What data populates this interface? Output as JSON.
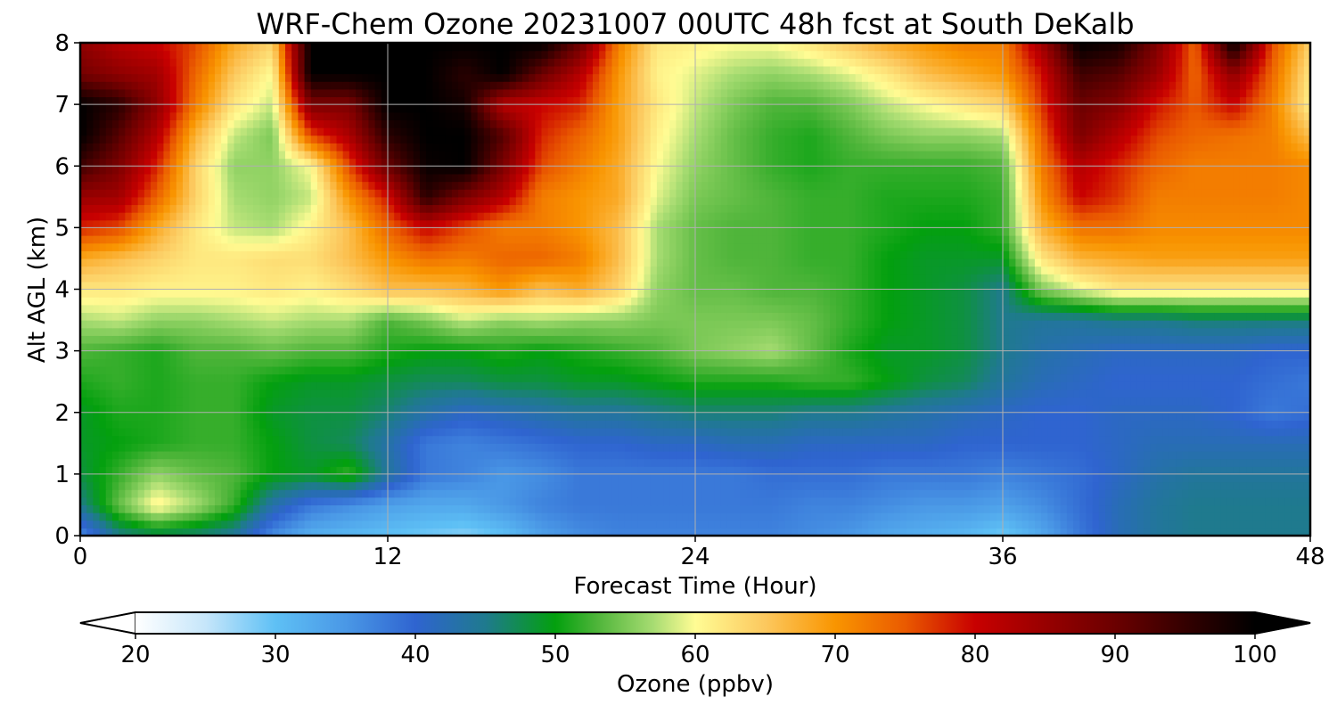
{
  "chart_data": {
    "type": "heatmap",
    "title": "WRF-Chem Ozone  20231007 00UTC 48h fcst at South DeKalb",
    "xlabel": "Forecast Time (Hour)",
    "ylabel": "Alt AGL (km)",
    "xlim": [
      0,
      48
    ],
    "ylim": [
      0,
      8
    ],
    "x_ticks": [
      0,
      12,
      24,
      36,
      48
    ],
    "x_tick_labels": [
      "0",
      "12",
      "24",
      "36",
      "48"
    ],
    "y_ticks": [
      0,
      1,
      2,
      3,
      4,
      5,
      6,
      7,
      8
    ],
    "y_tick_labels": [
      "0",
      "1",
      "2",
      "3",
      "4",
      "5",
      "6",
      "7",
      "8"
    ],
    "grid": true,
    "x": [
      0,
      1.5,
      3,
      4.5,
      6,
      7.5,
      9,
      10.5,
      12,
      13.5,
      15,
      16.5,
      18,
      19.5,
      21,
      22.5,
      24,
      25.5,
      27,
      28.5,
      30,
      31.5,
      33,
      34.5,
      36,
      37.5,
      39,
      40.5,
      42,
      43.5,
      45,
      46.5,
      48
    ],
    "y": [
      0,
      0.5,
      1,
      1.5,
      2,
      2.5,
      3,
      3.5,
      4,
      4.5,
      5,
      5.5,
      6,
      6.5,
      7,
      7.5,
      8
    ],
    "z": [
      [
        36,
        45,
        47,
        46,
        44,
        36,
        32,
        31,
        30,
        29,
        28,
        30,
        34,
        36,
        37,
        37,
        37,
        37,
        37,
        36,
        35,
        33,
        32,
        31,
        29,
        33,
        38,
        42,
        44,
        45,
        45,
        45,
        45
      ],
      [
        45,
        54,
        61,
        57,
        52,
        43,
        38,
        36,
        34,
        33,
        33,
        35,
        37,
        38,
        38,
        38,
        38,
        38,
        38,
        37,
        37,
        36,
        35,
        35,
        34,
        36,
        39,
        42,
        44,
        45,
        45,
        45,
        45
      ],
      [
        48,
        52,
        56,
        54,
        53,
        50,
        49,
        52,
        44,
        38,
        37,
        35,
        36,
        38,
        38,
        38,
        38,
        38,
        39,
        39,
        39,
        38,
        38,
        38,
        37,
        38,
        39,
        41,
        43,
        44,
        44,
        44,
        44
      ],
      [
        49,
        50,
        51,
        52,
        52,
        50,
        48,
        47,
        43,
        38,
        37,
        38,
        39,
        40,
        40,
        41,
        41,
        42,
        42,
        41,
        41,
        41,
        41,
        40,
        40,
        40,
        40,
        41,
        42,
        42,
        42,
        42,
        42
      ],
      [
        49,
        51,
        51,
        52,
        52,
        49,
        48,
        48,
        46,
        43,
        41,
        42,
        43,
        44,
        44,
        45,
        46,
        46,
        46,
        45,
        45,
        44,
        43,
        42,
        41,
        40,
        40,
        41,
        41,
        41,
        40,
        38,
        39
      ],
      [
        51,
        52,
        51,
        52,
        52,
        50,
        49,
        49,
        48,
        47,
        47,
        48,
        48,
        49,
        49,
        50,
        51,
        51,
        51,
        52,
        52,
        50,
        48,
        47,
        44,
        42,
        41,
        40,
        40,
        40,
        40,
        39,
        38
      ],
      [
        53,
        52,
        51,
        53,
        53,
        54,
        53,
        53,
        51,
        50,
        50,
        51,
        50,
        51,
        52,
        53,
        55,
        56,
        57,
        54,
        51,
        49,
        49,
        48,
        45,
        43,
        42,
        41,
        41,
        41,
        41,
        40,
        40
      ],
      [
        57,
        58,
        56,
        56,
        57,
        58,
        57,
        57,
        53,
        55,
        58,
        56,
        57,
        56,
        56,
        55,
        55,
        55,
        55,
        54,
        52,
        50,
        49,
        48,
        45,
        44,
        44,
        45,
        45,
        46,
        46,
        46,
        46
      ],
      [
        62,
        62,
        61,
        61,
        61,
        62,
        61,
        63,
        66,
        66,
        67,
        70,
        66,
        68,
        64,
        56,
        54,
        54,
        53,
        53,
        52,
        50,
        49,
        48,
        45,
        55,
        59,
        62,
        62,
        62,
        62,
        62,
        62
      ],
      [
        68,
        66,
        64,
        62,
        62,
        63,
        63,
        66,
        70,
        73,
        72,
        74,
        74,
        72,
        66,
        57,
        54,
        53,
        53,
        52,
        52,
        50,
        49,
        49,
        49,
        62,
        67,
        68,
        69,
        69,
        69,
        69,
        69
      ],
      [
        78,
        76,
        68,
        62,
        58,
        57,
        61,
        66,
        74,
        80,
        76,
        72,
        72,
        70,
        66,
        57,
        54,
        53,
        53,
        52,
        52,
        51,
        50,
        50,
        52,
        67,
        73,
        73,
        71,
        71,
        71,
        71,
        71
      ],
      [
        85,
        84,
        74,
        64,
        57,
        56,
        58,
        70,
        79,
        96,
        88,
        82,
        72,
        70,
        68,
        59,
        55,
        54,
        53,
        52,
        52,
        51,
        51,
        51,
        52,
        70,
        80,
        77,
        72,
        72,
        72,
        72,
        71
      ],
      [
        94,
        88,
        78,
        64,
        56,
        56,
        60,
        76,
        90,
        99,
        100,
        88,
        76,
        72,
        68,
        60,
        56,
        54,
        52,
        51,
        52,
        52,
        52,
        52,
        53,
        72,
        82,
        78,
        74,
        72,
        72,
        72,
        71
      ],
      [
        100,
        92,
        82,
        67,
        58,
        55,
        76,
        83,
        96,
        100,
        100,
        92,
        78,
        74,
        69,
        61,
        57,
        54,
        52,
        51,
        53,
        55,
        56,
        56,
        57,
        74,
        88,
        82,
        76,
        74,
        73,
        72,
        66
      ],
      [
        100,
        96,
        86,
        72,
        62,
        58,
        88,
        88,
        100,
        100,
        98,
        82,
        80,
        78,
        69,
        62,
        58,
        55,
        53,
        53,
        55,
        58,
        60,
        62,
        64,
        77,
        90,
        87,
        79,
        75,
        80,
        72,
        61
      ],
      [
        89,
        86,
        84,
        74,
        65,
        60,
        100,
        100,
        100,
        100,
        96,
        100,
        90,
        82,
        70,
        61,
        59,
        57,
        56,
        57,
        59,
        62,
        66,
        68,
        70,
        79,
        94,
        92,
        85,
        74,
        86,
        74,
        62
      ],
      [
        86,
        82,
        80,
        76,
        68,
        64,
        100,
        100,
        100,
        100,
        100,
        100,
        100,
        90,
        72,
        62,
        61,
        60,
        60,
        62,
        65,
        68,
        70,
        72,
        72,
        84,
        100,
        98,
        88,
        74,
        100,
        76,
        64
      ]
    ],
    "colorbar": {
      "label": "Ozone  (ppbv)",
      "min": 20,
      "max": 100,
      "ticks": [
        20,
        30,
        40,
        50,
        60,
        70,
        80,
        90,
        100
      ],
      "tick_labels": [
        "20",
        "30",
        "40",
        "50",
        "60",
        "70",
        "80",
        "90",
        "100"
      ],
      "extend": "both",
      "orientation": "horizontal",
      "stops": [
        {
          "v": 20,
          "c": "#ffffff"
        },
        {
          "v": 25,
          "c": "#c6e6fa"
        },
        {
          "v": 30,
          "c": "#5ec0f5"
        },
        {
          "v": 35,
          "c": "#4a98e6"
        },
        {
          "v": 40,
          "c": "#2f64d0"
        },
        {
          "v": 45,
          "c": "#1f7a8e"
        },
        {
          "v": 50,
          "c": "#03a00e"
        },
        {
          "v": 53,
          "c": "#4fb53a"
        },
        {
          "v": 57,
          "c": "#a7dc72"
        },
        {
          "v": 60,
          "c": "#fffc94"
        },
        {
          "v": 65,
          "c": "#fcc85e"
        },
        {
          "v": 70,
          "c": "#f99500"
        },
        {
          "v": 75,
          "c": "#ea5a00"
        },
        {
          "v": 80,
          "c": "#c80000"
        },
        {
          "v": 85,
          "c": "#980000"
        },
        {
          "v": 90,
          "c": "#6b0000"
        },
        {
          "v": 95,
          "c": "#340000"
        },
        {
          "v": 100,
          "c": "#000000"
        }
      ]
    }
  }
}
